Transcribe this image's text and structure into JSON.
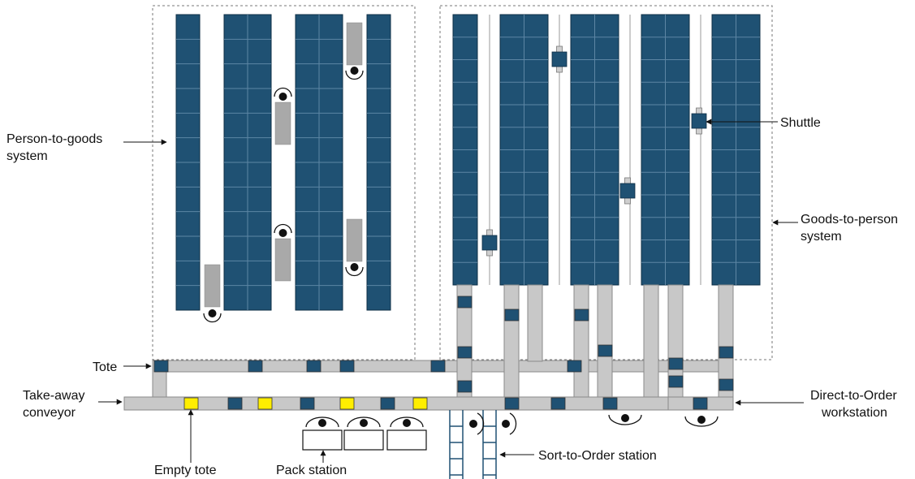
{
  "labels": {
    "person_to_goods": [
      "Person-to-goods",
      "system"
    ],
    "goods_to_person": [
      "Goods-to-person",
      "system"
    ],
    "shuttle": "Shuttle",
    "tote": "Tote",
    "take_away": [
      "Take-away",
      "conveyor"
    ],
    "direct_to_order": [
      "Direct-to-Order",
      "workstation"
    ],
    "empty_tote": "Empty tote",
    "pack_station": "Pack station",
    "sort_to_order": "Sort-to-Order station"
  },
  "colors": {
    "rack": "#1f5173",
    "rack_line": "#5d86a4",
    "tote": "#1f5173",
    "empty_tote": "#ffee00",
    "conveyor": "#c8c8c8",
    "conveyor_edge": "#8a8a8a",
    "cart": "#a9a9a9"
  }
}
